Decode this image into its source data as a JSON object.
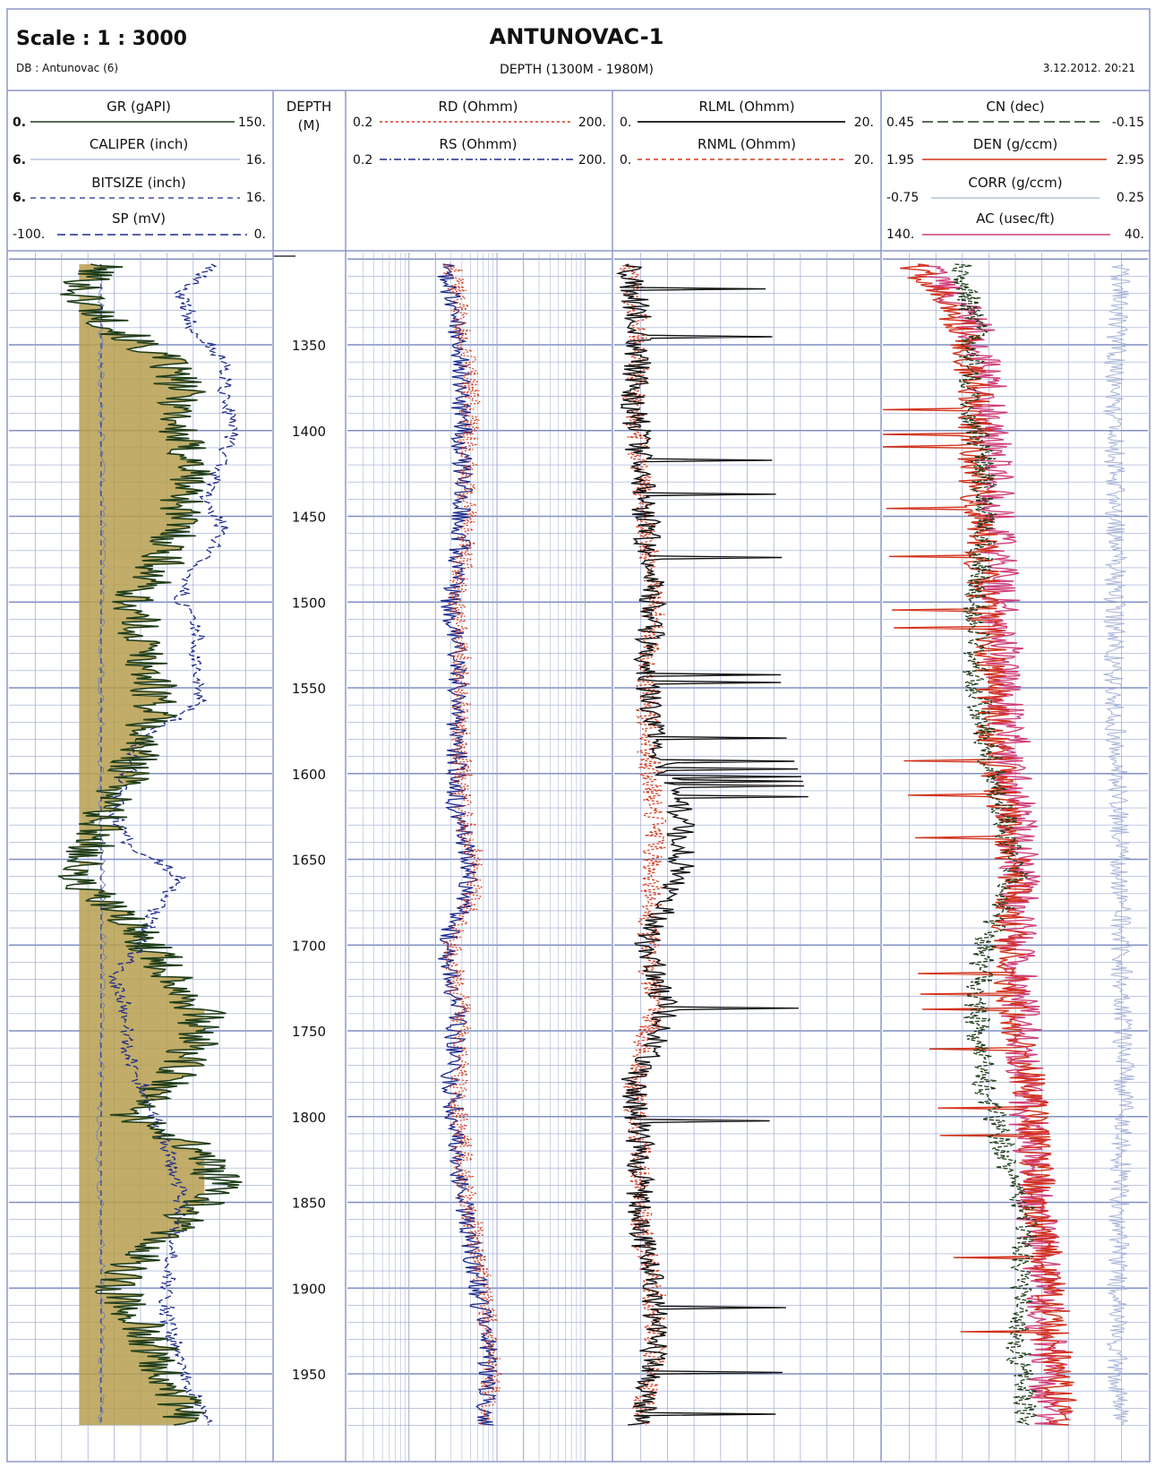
{
  "header": {
    "scale": "Scale : 1 : 3000",
    "well_name": "ANTUNOVAC-1",
    "database": "DB : Antunovac (6)",
    "depth_range": "DEPTH (1300M - 1980M)",
    "datetime": "3.12.2012. 20:21"
  },
  "depth_track": {
    "title_line1": "DEPTH",
    "title_line2": "(M)",
    "ticks": [
      "1350",
      "1400",
      "1450",
      "1500",
      "1550",
      "1600",
      "1650",
      "1700",
      "1750",
      "1800",
      "1850",
      "1900",
      "1950"
    ]
  },
  "curve_headers": {
    "gr": {
      "name": "GR (gAPI)",
      "min": "0.",
      "max": "150."
    },
    "caliper": {
      "name": "CALIPER (inch)",
      "min": "6.",
      "max": "16."
    },
    "bitsize": {
      "name": "BITSIZE (inch)",
      "min": "6.",
      "max": "16."
    },
    "sp": {
      "name": "SP (mV)",
      "min": "-100.",
      "max": "0."
    },
    "rd": {
      "name": "RD (Ohmm)",
      "min": "0.2",
      "max": "200."
    },
    "rs": {
      "name": "RS (Ohmm)",
      "min": "0.2",
      "max": "200."
    },
    "rlml": {
      "name": "RLML (Ohmm)",
      "min": "0.",
      "max": "20."
    },
    "rnml": {
      "name": "RNML (Ohmm)",
      "min": "0.",
      "max": "20."
    },
    "cn": {
      "name": "CN (dec)",
      "min": "0.45",
      "max": "-0.15"
    },
    "den": {
      "name": "DEN (g/ccm)",
      "min": "1.95",
      "max": "2.95"
    },
    "corr": {
      "name": "CORR (g/ccm)",
      "min": "-0.75",
      "max": "0.25"
    },
    "ac": {
      "name": "AC (usec/ft)",
      "min": "140.",
      "max": "40."
    }
  },
  "colors": {
    "grid": "#9aa8d0",
    "grid_major": "#7f8fc4",
    "gr": "#1f3d1a",
    "gr_fill": "#b69f4f",
    "sp": "#1c2a8c",
    "bitsize": "#1c2a8c",
    "rd": "#d23a1c",
    "rs": "#1c2a8c",
    "rlml": "#111111",
    "rnml": "#d23a1c",
    "cn": "#1f3d1a",
    "den": "#d2301a",
    "corr": "#a7b4d8",
    "ac": "#d0407a"
  },
  "chart_data": {
    "type": "line",
    "title": "ANTUNOVAC-1",
    "depth_unit": "M",
    "depth_range": [
      1300,
      1980
    ],
    "tracks": [
      {
        "track": "GR/CALIPER/BITSIZE/SP",
        "series": [
          {
            "name": "GR (gAPI)",
            "scale": [
              0,
              150
            ],
            "depth": [
              1300,
              1320,
              1340,
              1360,
              1380,
              1400,
              1420,
              1440,
              1460,
              1480,
              1500,
              1520,
              1540,
              1560,
              1580,
              1600,
              1620,
              1640,
              1660,
              1680,
              1700,
              1720,
              1740,
              1760,
              1780,
              1800,
              1820,
              1840,
              1860,
              1880,
              1900,
              1920,
              1940,
              1960,
              1980
            ],
            "values": [
              55,
              40,
              60,
              90,
              100,
              95,
              105,
              100,
              95,
              85,
              70,
              75,
              80,
              85,
              75,
              70,
              55,
              50,
              35,
              60,
              80,
              95,
              110,
              105,
              90,
              70,
              110,
              120,
              100,
              75,
              60,
              75,
              85,
              95,
              100
            ]
          },
          {
            "name": "CALIPER (inch)",
            "scale": [
              6,
              16
            ],
            "depth": [
              1300,
              1380,
              1460,
              1540,
              1620,
              1700,
              1780,
              1820,
              1860,
              1900,
              1940,
              1980
            ],
            "values": [
              9.5,
              9.5,
              9.6,
              9.5,
              9.5,
              9.6,
              9.5,
              9.4,
              9.5,
              9.6,
              9.5,
              9.5
            ]
          },
          {
            "name": "BITSIZE (inch)",
            "scale": [
              6,
              16
            ],
            "depth": [
              1300,
              1980
            ],
            "values": [
              9.5,
              9.5
            ]
          },
          {
            "name": "SP (mV)",
            "scale": [
              -100,
              0
            ],
            "depth": [
              1300,
              1320,
              1340,
              1360,
              1380,
              1400,
              1420,
              1440,
              1460,
              1480,
              1500,
              1520,
              1540,
              1560,
              1580,
              1600,
              1620,
              1640,
              1660,
              1680,
              1700,
              1720,
              1740,
              1760,
              1780,
              1800,
              1820,
              1840,
              1860,
              1880,
              1900,
              1920,
              1940,
              1960,
              1980
            ],
            "values": [
              -20,
              -35,
              -30,
              -18,
              -18,
              -15,
              -20,
              -25,
              -18,
              -30,
              -35,
              -28,
              -30,
              -28,
              -50,
              -55,
              -60,
              -55,
              -35,
              -45,
              -50,
              -60,
              -55,
              -55,
              -50,
              -45,
              -40,
              -35,
              -35,
              -38,
              -40,
              -40,
              -35,
              -30,
              -25
            ]
          }
        ]
      },
      {
        "track": "RD/RS",
        "scale_type": "log",
        "series": [
          {
            "name": "RD (Ohmm)",
            "scale": [
              0.2,
              200
            ],
            "depth": [
              1300,
              1340,
              1380,
              1420,
              1460,
              1500,
              1540,
              1580,
              1620,
              1660,
              1700,
              1740,
              1780,
              1820,
              1860,
              1900,
              1940,
              1980
            ],
            "values": [
              3,
              4,
              5,
              4.5,
              4.5,
              3.5,
              4,
              4,
              4,
              6,
              3,
              4,
              3.5,
              4,
              5,
              7,
              9,
              8
            ]
          },
          {
            "name": "RS (Ohmm)",
            "scale": [
              0.2,
              200
            ],
            "depth": [
              1300,
              1340,
              1380,
              1420,
              1460,
              1500,
              1540,
              1580,
              1620,
              1660,
              1700,
              1740,
              1780,
              1820,
              1860,
              1900,
              1940,
              1980
            ],
            "values": [
              2.5,
              3.5,
              4,
              4,
              4,
              3,
              3.5,
              3.5,
              3.5,
              5,
              2.5,
              3.5,
              3,
              3.5,
              4.5,
              6,
              8,
              7
            ]
          }
        ]
      },
      {
        "track": "RLML/RNML",
        "series": [
          {
            "name": "RLML (Ohmm)",
            "scale": [
              0,
              20
            ],
            "depth": [
              1300,
              1340,
              1380,
              1420,
              1460,
              1500,
              1540,
              1580,
              1620,
              1660,
              1700,
              1740,
              1780,
              1820,
              1860,
              1900,
              1940,
              1980
            ],
            "values": [
              1,
              2,
              1.5,
              2,
              2.5,
              3,
              2.5,
              3,
              5,
              5,
              2.5,
              4,
              1.5,
              2,
              2,
              3,
              3,
              2
            ]
          },
          {
            "name": "RNML (Ohmm)",
            "scale": [
              0,
              20
            ],
            "depth": [
              1300,
              1340,
              1380,
              1420,
              1460,
              1500,
              1540,
              1580,
              1620,
              1660,
              1700,
              1740,
              1780,
              1820,
              1860,
              1900,
              1940,
              1980
            ],
            "values": [
              1,
              2,
              1.5,
              2,
              2.5,
              3,
              2.5,
              2.5,
              3,
              3,
              2.5,
              3,
              1.5,
              2,
              2,
              3,
              3,
              2
            ]
          }
        ]
      },
      {
        "track": "CN/DEN/CORR/AC",
        "series": [
          {
            "name": "CN (dec)",
            "scale": [
              0.45,
              -0.15
            ],
            "depth": [
              1300,
              1340,
              1380,
              1420,
              1460,
              1500,
              1540,
              1580,
              1620,
              1660,
              1700,
              1740,
              1780,
              1820,
              1860,
              1900,
              1940,
              1980
            ],
            "values": [
              0.28,
              0.24,
              0.26,
              0.22,
              0.22,
              0.24,
              0.24,
              0.22,
              0.18,
              0.15,
              0.22,
              0.24,
              0.22,
              0.18,
              0.12,
              0.14,
              0.14,
              0.12
            ]
          },
          {
            "name": "DEN (g/ccm)",
            "scale": [
              1.95,
              2.95
            ],
            "depth": [
              1300,
              1340,
              1380,
              1420,
              1460,
              1500,
              1540,
              1580,
              1620,
              1660,
              1700,
              1740,
              1780,
              1820,
              1860,
              1900,
              1940,
              1980
            ],
            "values": [
              2.05,
              2.25,
              2.3,
              2.3,
              2.32,
              2.33,
              2.36,
              2.37,
              2.4,
              2.45,
              2.42,
              2.45,
              2.5,
              2.52,
              2.55,
              2.58,
              2.6,
              2.62
            ]
          },
          {
            "name": "CORR (g/ccm)",
            "scale": [
              -0.75,
              0.25
            ],
            "depth": [
              1300,
              1380,
              1460,
              1540,
              1620,
              1700,
              1780,
              1860,
              1940,
              1980
            ],
            "values": [
              0.15,
              0.12,
              0.13,
              0.12,
              0.14,
              0.15,
              0.16,
              0.14,
              0.13,
              0.15
            ]
          },
          {
            "name": "AC (usec/ft)",
            "scale": [
              140,
              40
            ],
            "depth": [
              1300,
              1340,
              1380,
              1420,
              1460,
              1500,
              1540,
              1580,
              1620,
              1660,
              1700,
              1740,
              1780,
              1820,
              1860,
              1900,
              1940,
              1980
            ],
            "values": [
              125,
              105,
              100,
              98,
              97,
              96,
              94,
              92,
              90,
              88,
              90,
              88,
              86,
              84,
              82,
              80,
              78,
              76
            ]
          }
        ]
      }
    ]
  }
}
